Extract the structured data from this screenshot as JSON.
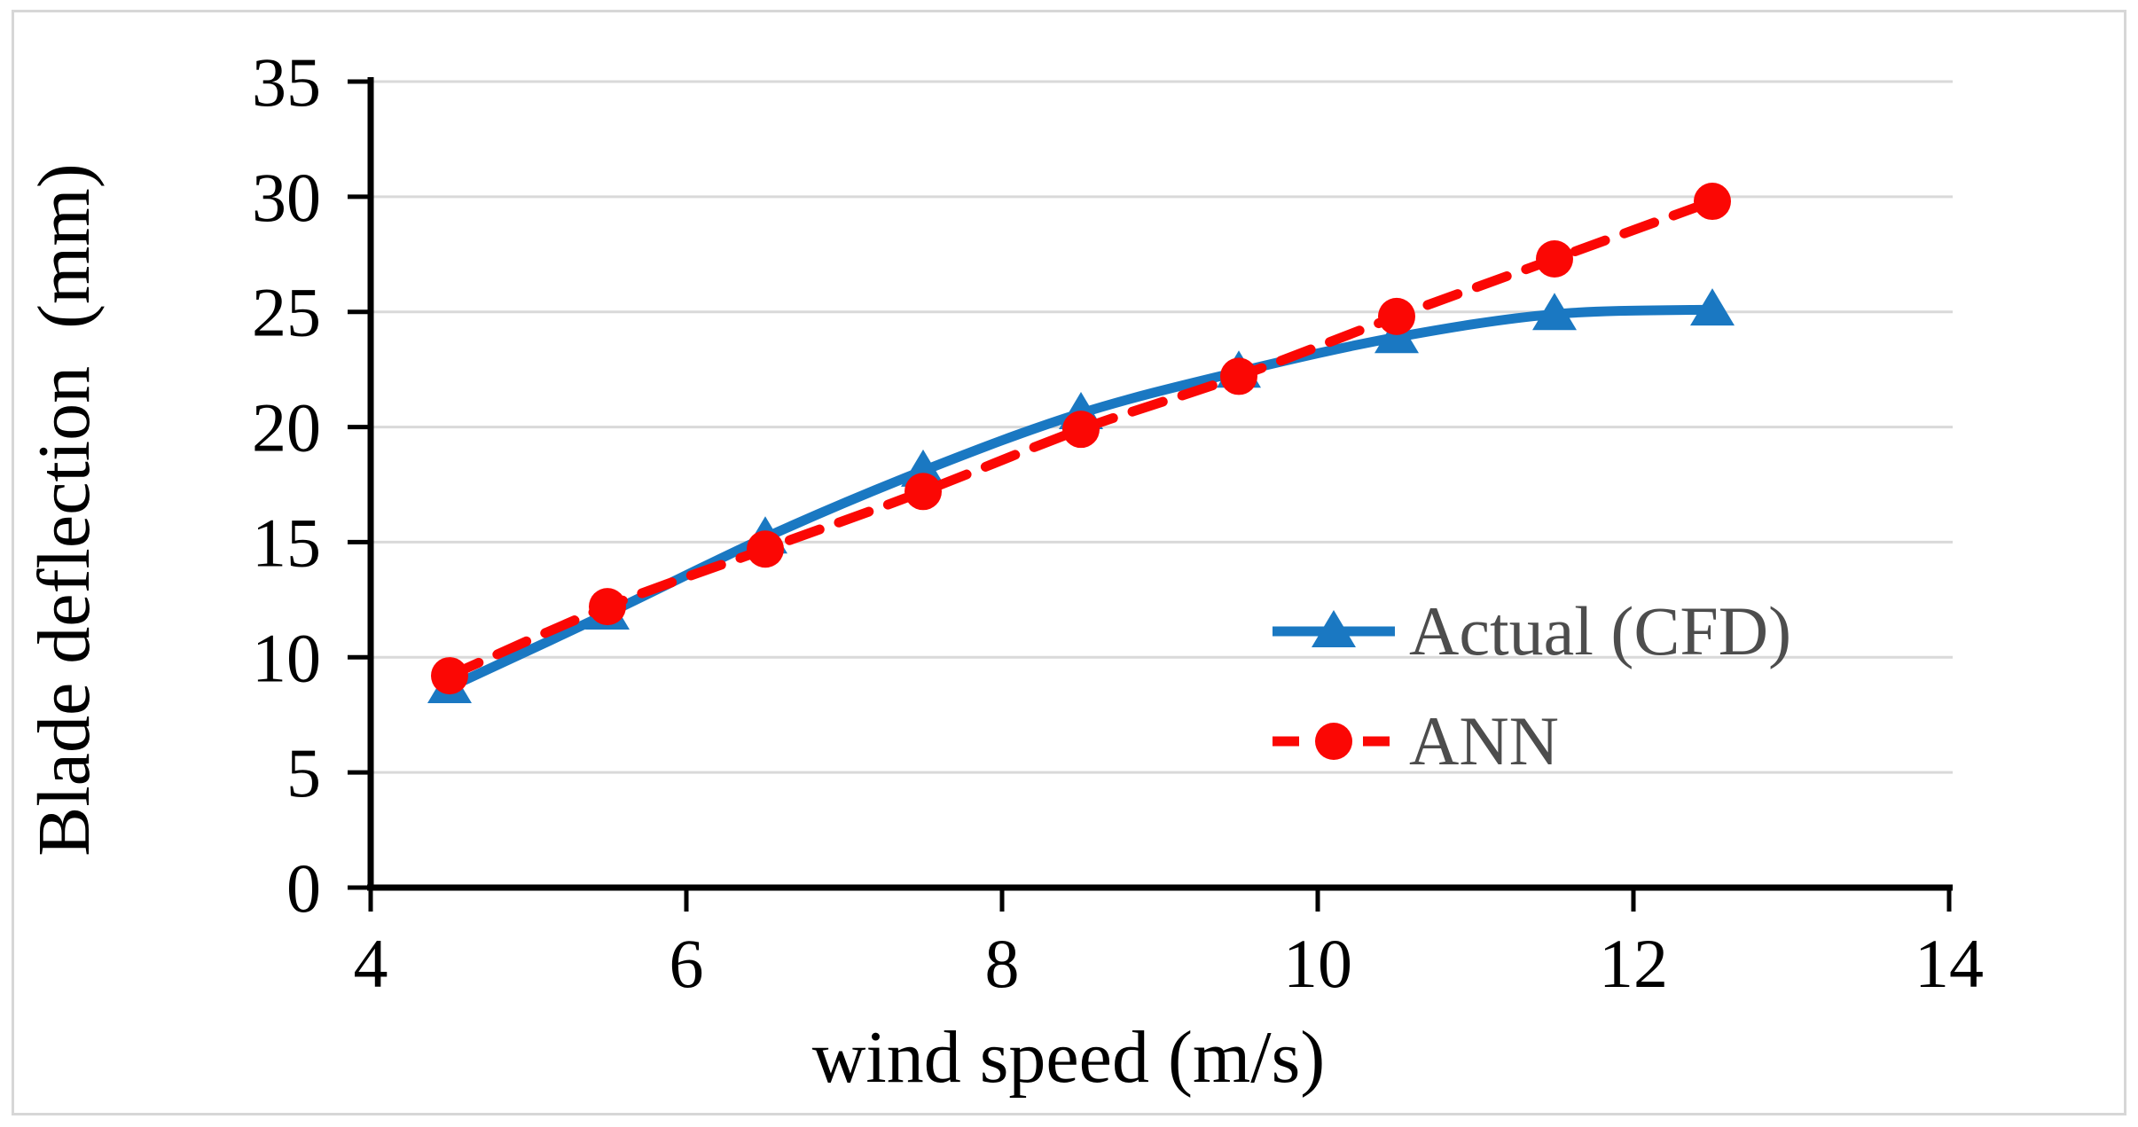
{
  "figure": {
    "background": "#ffffff",
    "border_color": "#d7d7d7"
  },
  "chart_data": {
    "type": "line",
    "title": "",
    "xlabel": "wind speed (m/s)",
    "ylabel": "Blade deflection  (mm)",
    "x": [
      4.5,
      5.5,
      6.5,
      7.5,
      8.5,
      9.5,
      10.5,
      11.5,
      12.5
    ],
    "series": [
      {
        "name": "Actual (CFD)",
        "color": "#1a78c2",
        "line_style": "solid",
        "marker": "triangle",
        "values": [
          8.7,
          11.9,
          15.2,
          18.1,
          20.6,
          22.4,
          23.9,
          24.9,
          25.1
        ]
      },
      {
        "name": "ANN",
        "color": "#fb0704",
        "line_style": "dashed",
        "marker": "circle",
        "values": [
          9.2,
          12.2,
          14.7,
          17.2,
          19.9,
          22.2,
          24.8,
          27.3,
          29.8
        ]
      }
    ],
    "xlim": [
      4,
      14
    ],
    "ylim": [
      0,
      35
    ],
    "xticks": [
      4,
      6,
      8,
      10,
      12,
      14
    ],
    "yticks": [
      0,
      5,
      10,
      15,
      20,
      25,
      30,
      35
    ],
    "grid": "horizontal",
    "gridline_color": "#d9d9d9",
    "axis_color": "#000000",
    "tick_label_color": "#000000",
    "legend": {
      "position": "inside-right",
      "text_color": "#4d4d4d",
      "items": [
        "Actual (CFD)",
        "ANN"
      ]
    }
  }
}
